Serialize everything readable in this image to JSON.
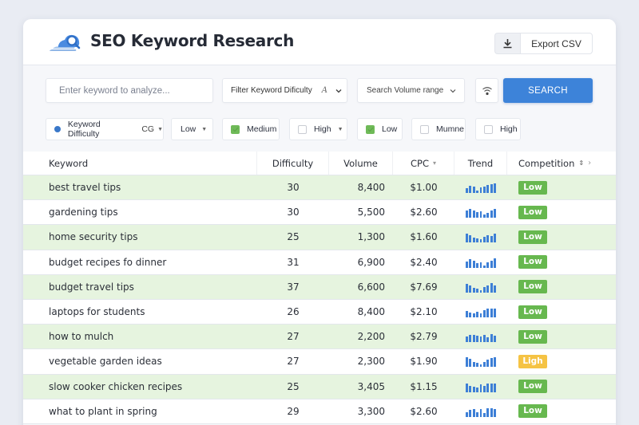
{
  "header": {
    "title": "SEO Keyword Research",
    "export_label": "Export CSV",
    "logo_icon": "magnifier-cloud-logo",
    "export_icon": "download-icon"
  },
  "search": {
    "placeholder": "Enter keyword to analyze...",
    "difficulty_filter_label": "Filter Keyword Dificulty",
    "difficulty_filter_glyph": "A",
    "volume_filter_label": "Search Volume range",
    "wifi_icon": "signal-icon",
    "search_button_label": "SEARCH"
  },
  "filters": {
    "keyword_difficulty_label": "Keyword Difficulty",
    "keyword_difficulty_sub": "CG",
    "low_dropdown_label": "Low",
    "medium_label": "Medium",
    "medium_checked": true,
    "high_dropdown_label": "High",
    "low_label": "Low",
    "low_checked": true,
    "mumne_label": "Mumne",
    "mumne_checked": false,
    "high_label": "High",
    "high_checked": false
  },
  "table": {
    "columns": {
      "keyword": "Keyword",
      "difficulty": "Difficulty",
      "volume": "Volume",
      "cpc": "CPC",
      "trend": "Trend",
      "competition": "Competition"
    },
    "rows": [
      {
        "keyword": "best travel tips",
        "difficulty": "30",
        "volume": "8,400",
        "cpc": "$1.00",
        "trend": [
          6,
          9,
          8,
          3,
          7,
          8,
          10,
          11,
          12
        ],
        "competition": "Low",
        "competition_color": "#67b84f"
      },
      {
        "keyword": "gardening tips",
        "difficulty": "30",
        "volume": "5,500",
        "cpc": "$2.60",
        "trend": [
          9,
          11,
          9,
          7,
          8,
          4,
          6,
          9,
          11
        ],
        "competition": "Low",
        "competition_color": "#67b84f"
      },
      {
        "keyword": "home security tips",
        "difficulty": "25",
        "volume": "1,300",
        "cpc": "$1.60",
        "trend": [
          11,
          9,
          6,
          5,
          4,
          7,
          9,
          8,
          11
        ],
        "competition": "Low",
        "competition_color": "#67b84f"
      },
      {
        "keyword": "budget recipes fo dinner",
        "difficulty": "31",
        "volume": "6,900",
        "cpc": "$2.40",
        "trend": [
          8,
          11,
          9,
          6,
          7,
          3,
          7,
          9,
          12
        ],
        "competition": "Low",
        "competition_color": "#67b84f"
      },
      {
        "keyword": "budget travel tips",
        "difficulty": "37",
        "volume": "6,600",
        "cpc": "$7.69",
        "trend": [
          11,
          9,
          6,
          5,
          3,
          7,
          9,
          12,
          9
        ],
        "competition": "Low",
        "competition_color": "#67b84f"
      },
      {
        "keyword": "laptops for students",
        "difficulty": "26",
        "volume": "8,400",
        "cpc": "$2.10",
        "trend": [
          8,
          6,
          5,
          7,
          5,
          9,
          11,
          11,
          11
        ],
        "competition": "Low",
        "competition_color": "#67b84f"
      },
      {
        "keyword": "how to mulch",
        "difficulty": "27",
        "volume": "2,200",
        "cpc": "$2.79",
        "trend": [
          7,
          9,
          9,
          8,
          7,
          9,
          6,
          10,
          8
        ],
        "competition": "Low",
        "competition_color": "#67b84f"
      },
      {
        "keyword": "vegetable garden ideas",
        "difficulty": "27",
        "volume": "2,300",
        "cpc": "$1.90",
        "trend": [
          12,
          10,
          6,
          5,
          3,
          6,
          9,
          11,
          12
        ],
        "competition": "Ligh",
        "competition_color": "#f5c344"
      },
      {
        "keyword": "slow cooker chicken recipes",
        "difficulty": "25",
        "volume": "3,405",
        "cpc": "$1.15",
        "trend": [
          11,
          8,
          7,
          6,
          10,
          8,
          11,
          11,
          11
        ],
        "competition": "Low",
        "competition_color": "#67b84f"
      },
      {
        "keyword": "what to plant in spring",
        "difficulty": "29",
        "volume": "3,300",
        "cpc": "$2.60",
        "trend": [
          6,
          9,
          10,
          6,
          10,
          5,
          11,
          11,
          10
        ],
        "competition": "Low",
        "competition_color": "#67b84f"
      }
    ]
  },
  "colors": {
    "accent": "#3d83d9",
    "row_alt": "#e6f4df",
    "badge_low": "#67b84f",
    "badge_high": "#f5c344",
    "spark": "#3d7fd6"
  }
}
